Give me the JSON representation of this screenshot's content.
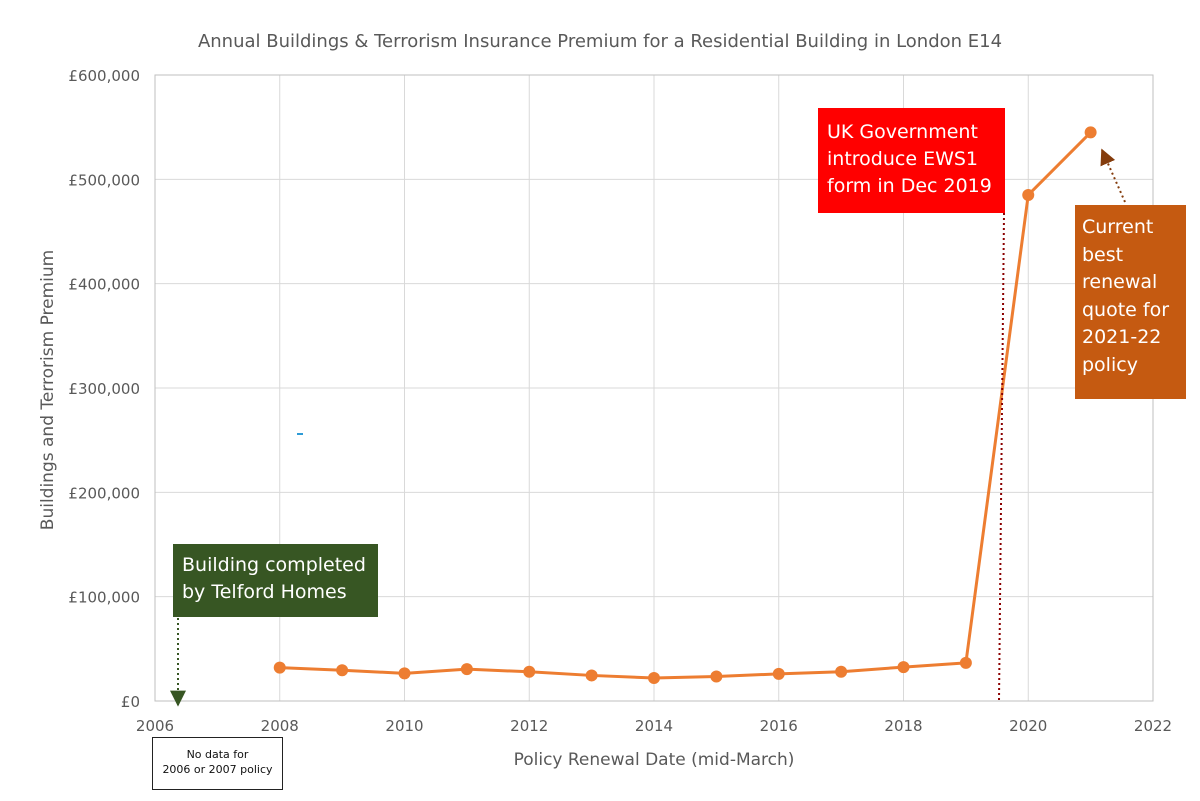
{
  "chart_data": {
    "type": "line",
    "title": "Annual Buildings & Terrorism Insurance Premium for a Residential Building in London E14",
    "xlabel": "Policy Renewal Date (mid-March)",
    "ylabel": "Buildings and Terrorism Premium",
    "xlim": [
      2006,
      2022
    ],
    "ylim": [
      0,
      600000
    ],
    "x_ticks": [
      "2006",
      "2008",
      "2010",
      "2012",
      "2014",
      "2016",
      "2018",
      "2020",
      "2022"
    ],
    "y_ticks": [
      "£0",
      "£100,000",
      "£200,000",
      "£300,000",
      "£400,000",
      "£500,000",
      "£600,000"
    ],
    "grid": true,
    "series": [
      {
        "color": "#ed7d31",
        "x": [
          2008,
          2009,
          2010,
          2011,
          2012,
          2013,
          2014,
          2015,
          2016,
          2017,
          2018,
          2019,
          2020,
          2021
        ],
        "y": [
          32000,
          29500,
          26500,
          30500,
          28000,
          24500,
          22000,
          23500,
          26000,
          28000,
          32500,
          36500,
          485000,
          545000
        ]
      }
    ],
    "annotations": [
      {
        "id": "completed",
        "lines": [
          "Building completed",
          "by Telford Homes"
        ],
        "color": "#375623",
        "arrow_color": "#375623"
      },
      {
        "id": "ews1",
        "lines": [
          "UK Government",
          "introduce EWS1",
          "form in Dec 2019"
        ],
        "color": "#ff0000",
        "arrow_color": "#8b0000"
      },
      {
        "id": "quote",
        "lines": [
          "Current",
          "best",
          "renewal",
          "quote for",
          "2021-22",
          "policy"
        ],
        "color": "#c55a11",
        "arrow_color": "#843c0c"
      },
      {
        "id": "nodata",
        "lines": [
          "No data for",
          "2006 or 2007 policy"
        ]
      }
    ]
  }
}
